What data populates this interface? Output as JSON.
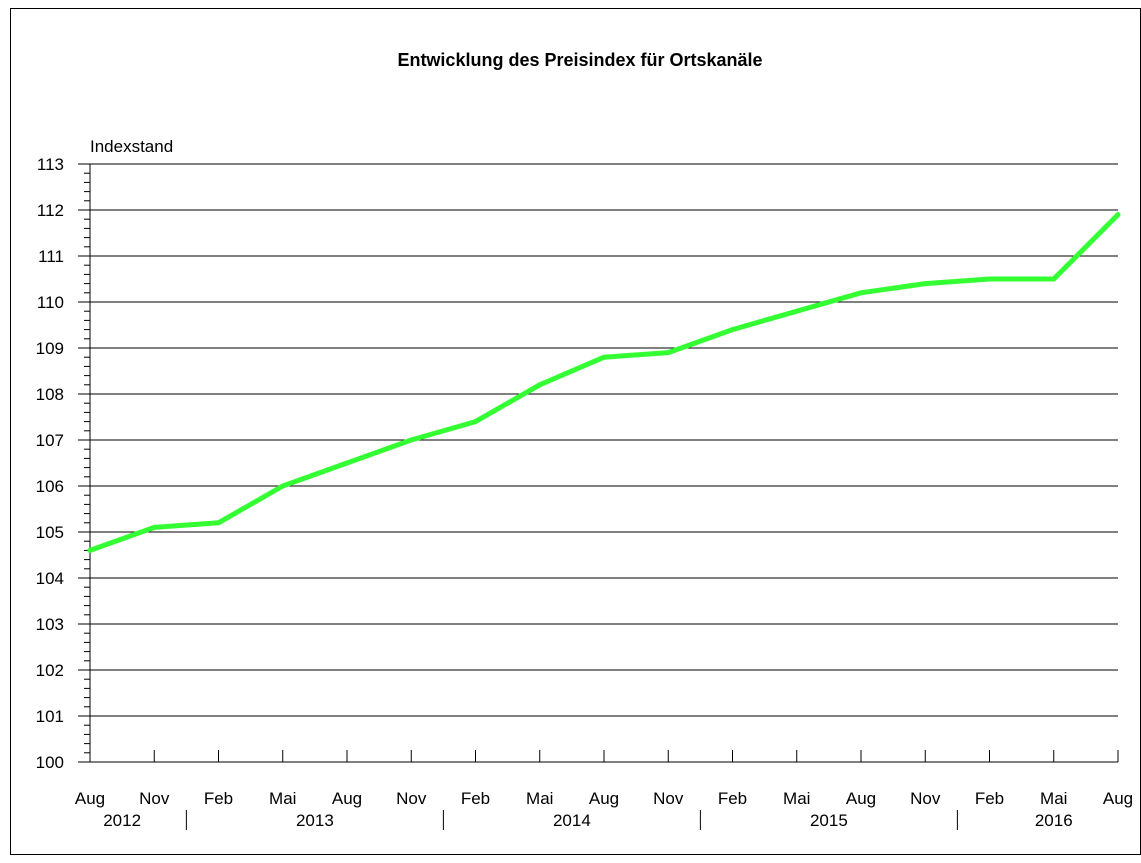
{
  "chart_data": {
    "type": "line",
    "title": "Entwicklung des Preisindex für Ortskanäle",
    "ylabel": "Indexstand",
    "xlabel": "",
    "ylim": [
      100,
      113
    ],
    "y_ticks": [
      "100",
      "101",
      "102",
      "103",
      "104",
      "105",
      "106",
      "107",
      "108",
      "109",
      "110",
      "111",
      "112",
      "113"
    ],
    "x_tick_labels": [
      "Aug",
      "Nov",
      "Feb",
      "Mai",
      "Aug",
      "Nov",
      "Feb",
      "Mai",
      "Aug",
      "Nov",
      "Feb",
      "Mai",
      "Aug",
      "Nov",
      "Feb",
      "Mai",
      "Aug"
    ],
    "years": [
      {
        "label": "2012",
        "start": 0,
        "end": 1
      },
      {
        "label": "2013",
        "start": 2,
        "end": 5
      },
      {
        "label": "2014",
        "start": 6,
        "end": 9
      },
      {
        "label": "2015",
        "start": 10,
        "end": 13
      },
      {
        "label": "2016",
        "start": 14,
        "end": 16
      }
    ],
    "series": [
      {
        "values": [
          104.6,
          105.1,
          105.2,
          106.0,
          106.5,
          107.0,
          107.4,
          108.2,
          108.8,
          108.9,
          109.4,
          109.8,
          110.2,
          110.4,
          110.5,
          110.5,
          111.9
        ]
      }
    ],
    "line_color": "#33ff33",
    "grid": true,
    "legend": "none"
  }
}
